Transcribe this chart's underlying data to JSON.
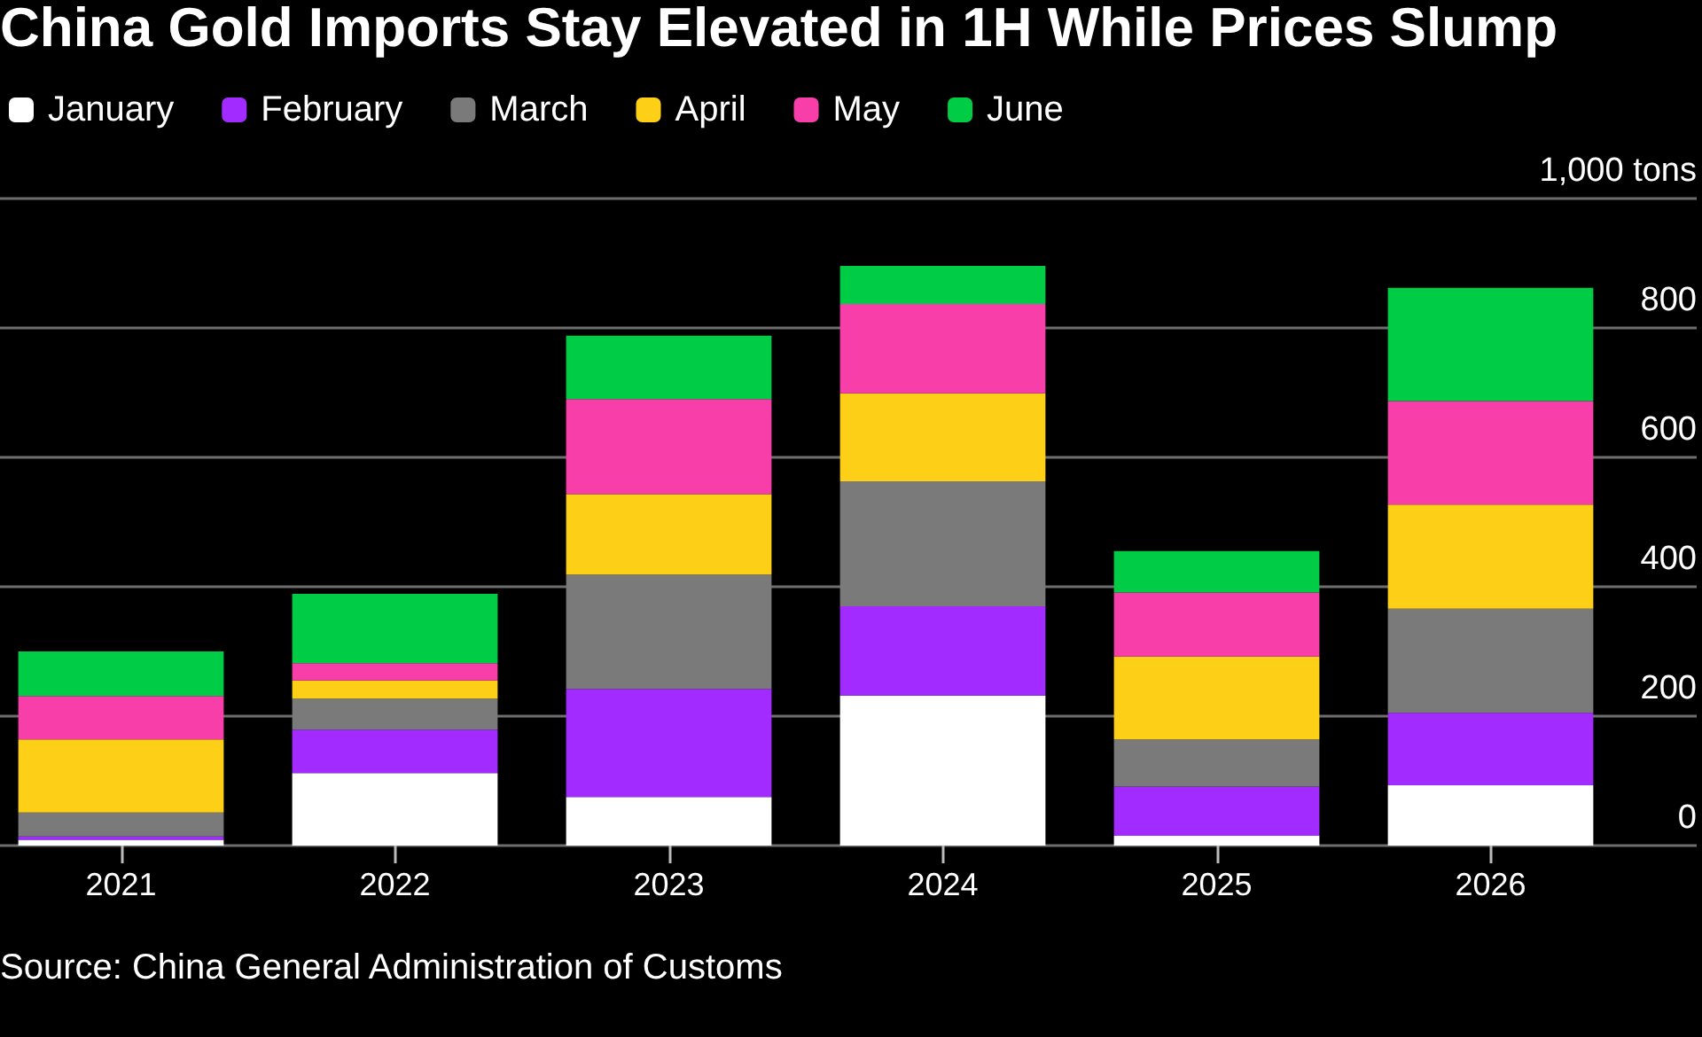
{
  "chart_data": {
    "type": "bar",
    "title": "China Gold Imports Stay Elevated in 1H While Prices Slump",
    "categories": [
      "2021",
      "2022",
      "2023",
      "2024",
      "2025",
      "2026"
    ],
    "series": [
      {
        "name": "January",
        "color": "#ffffff",
        "values": [
          9,
          112,
          75,
          232,
          15,
          93
        ]
      },
      {
        "name": "February",
        "color": "#a22cff",
        "values": [
          5,
          67,
          167,
          138,
          76,
          112
        ]
      },
      {
        "name": "March",
        "color": "#7a7a7a",
        "values": [
          37,
          48,
          177,
          193,
          73,
          161
        ]
      },
      {
        "name": "April",
        "color": "#fdd017",
        "values": [
          113,
          28,
          124,
          136,
          128,
          161
        ]
      },
      {
        "name": "May",
        "color": "#f83fa9",
        "values": [
          67,
          27,
          147,
          138,
          99,
          160
        ]
      },
      {
        "name": "June",
        "color": "#00cc45",
        "values": [
          69,
          107,
          98,
          59,
          64,
          175
        ]
      }
    ],
    "stacked": true,
    "ylim": [
      0,
      1000
    ],
    "yticks": [
      0,
      200,
      400,
      600,
      800,
      {
        "value": 1000,
        "label": "1,000 tons"
      }
    ],
    "grid": "y",
    "legend": "top left",
    "annotations": [
      "Source: China General Administration of Customs"
    ]
  }
}
